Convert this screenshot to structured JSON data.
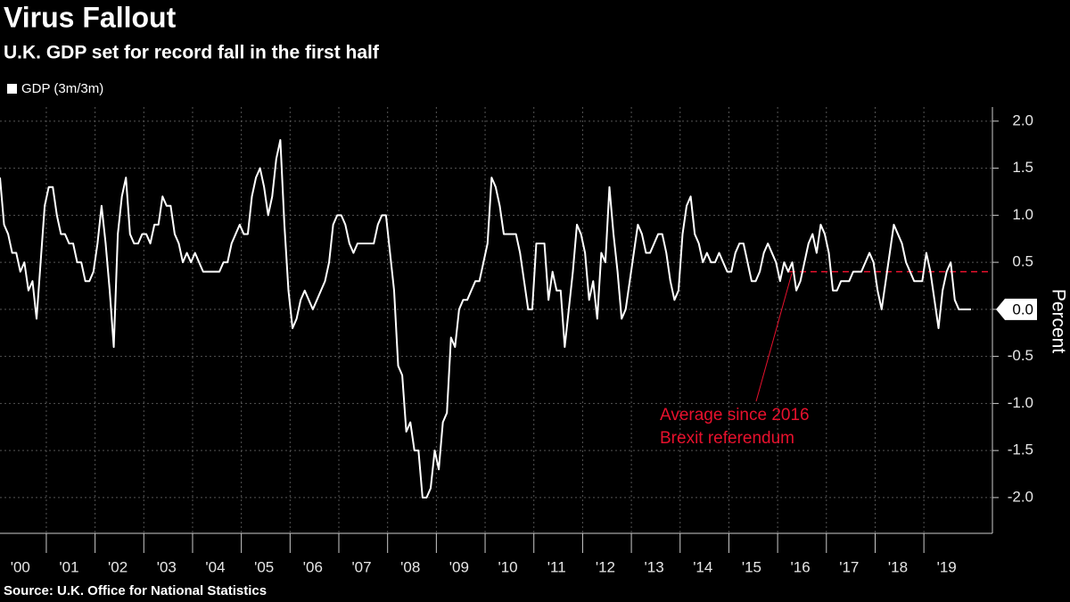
{
  "chart_data": {
    "type": "line",
    "title": "Virus Fallout",
    "subtitle": "U.K. GDP set for record fall in the first half",
    "source": "Source: U.K. Office for National Statistics",
    "y_label": "Percent",
    "categories": [
      null,
      null,
      null,
      null,
      null,
      "'00",
      null,
      null,
      null,
      null,
      null,
      null,
      null,
      null,
      null,
      null,
      null,
      "'01",
      null,
      null,
      null,
      null,
      null,
      null,
      null,
      null,
      null,
      null,
      null,
      "'02",
      null,
      null,
      null,
      null,
      null,
      null,
      null,
      null,
      null,
      null,
      null,
      "'03",
      null,
      null,
      null,
      null,
      null,
      null,
      null,
      null,
      null,
      null,
      null,
      "'04",
      null,
      null,
      null,
      null,
      null,
      null,
      null,
      null,
      null,
      null,
      null,
      "'05",
      null,
      null,
      null,
      null,
      null,
      null,
      null,
      null,
      null,
      null,
      null,
      "'06",
      null,
      null,
      null,
      null,
      null,
      null,
      null,
      null,
      null,
      null,
      null,
      "'07",
      null,
      null,
      null,
      null,
      null,
      null,
      null,
      null,
      null,
      null,
      null,
      "'08",
      null,
      null,
      null,
      null,
      null,
      null,
      null,
      null,
      null,
      null,
      null,
      "'09",
      null,
      null,
      null,
      null,
      null,
      null,
      null,
      null,
      null,
      null,
      null,
      "'10",
      null,
      null,
      null,
      null,
      null,
      null,
      null,
      null,
      null,
      null,
      null,
      "'11",
      null,
      null,
      null,
      null,
      null,
      null,
      null,
      null,
      null,
      null,
      null,
      "'12",
      null,
      null,
      null,
      null,
      null,
      null,
      null,
      null,
      null,
      null,
      null,
      "'13",
      null,
      null,
      null,
      null,
      null,
      null,
      null,
      null,
      null,
      null,
      null,
      "'14",
      null,
      null,
      null,
      null,
      null,
      null,
      null,
      null,
      null,
      null,
      null,
      "'15",
      null,
      null,
      null,
      null,
      null,
      null,
      null,
      null,
      null,
      null,
      null,
      "'16",
      null,
      null,
      null,
      null,
      null,
      null,
      null,
      null,
      null,
      null,
      null,
      "'17",
      null,
      null,
      null,
      null,
      null,
      null,
      null,
      null,
      null,
      null,
      null,
      "'18",
      null,
      null,
      null,
      null,
      null,
      null,
      null,
      null,
      null,
      null,
      null,
      "'19",
      null,
      null,
      null,
      null,
      null,
      null
    ],
    "series": [
      {
        "name": "GDP (3m/3m)",
        "color": "#ffffff",
        "values": [
          1.4,
          0.9,
          0.8,
          0.6,
          0.6,
          0.4,
          0.5,
          0.2,
          0.3,
          -0.1,
          0.5,
          1.1,
          1.3,
          1.3,
          1.0,
          0.8,
          0.8,
          0.7,
          0.7,
          0.5,
          0.5,
          0.3,
          0.3,
          0.4,
          0.7,
          1.1,
          0.7,
          0.2,
          -0.4,
          0.8,
          1.2,
          1.4,
          0.8,
          0.7,
          0.7,
          0.8,
          0.8,
          0.7,
          0.9,
          0.9,
          1.2,
          1.1,
          1.1,
          0.8,
          0.7,
          0.5,
          0.6,
          0.5,
          0.6,
          0.5,
          0.4,
          0.4,
          0.4,
          0.4,
          0.4,
          0.5,
          0.5,
          0.7,
          0.8,
          0.9,
          0.8,
          0.8,
          1.2,
          1.4,
          1.5,
          1.3,
          1.0,
          1.2,
          1.6,
          1.8,
          0.9,
          0.2,
          -0.2,
          -0.1,
          0.1,
          0.2,
          0.1,
          0.0,
          0.1,
          0.2,
          0.3,
          0.5,
          0.9,
          1.0,
          1.0,
          0.9,
          0.7,
          0.6,
          0.7,
          0.7,
          0.7,
          0.7,
          0.7,
          0.9,
          1.0,
          1.0,
          0.6,
          0.2,
          -0.6,
          -0.7,
          -1.3,
          -1.2,
          -1.5,
          -1.5,
          -2.0,
          -2.0,
          -1.9,
          -1.5,
          -1.7,
          -1.2,
          -1.1,
          -0.3,
          -0.4,
          0.0,
          0.1,
          0.1,
          0.2,
          0.3,
          0.3,
          0.5,
          0.7,
          1.4,
          1.3,
          1.1,
          0.8,
          0.8,
          0.8,
          0.8,
          0.6,
          0.3,
          0.0,
          0.0,
          0.7,
          0.7,
          0.7,
          0.1,
          0.4,
          0.2,
          0.2,
          -0.4,
          0.0,
          0.4,
          0.9,
          0.8,
          0.6,
          0.1,
          0.3,
          -0.1,
          0.6,
          0.5,
          1.3,
          0.8,
          0.4,
          -0.1,
          0.0,
          0.3,
          0.6,
          0.9,
          0.8,
          0.6,
          0.6,
          0.7,
          0.8,
          0.8,
          0.6,
          0.3,
          0.1,
          0.2,
          0.8,
          1.1,
          1.2,
          0.8,
          0.7,
          0.5,
          0.6,
          0.5,
          0.5,
          0.6,
          0.5,
          0.4,
          0.4,
          0.6,
          0.7,
          0.7,
          0.5,
          0.3,
          0.3,
          0.4,
          0.6,
          0.7,
          0.6,
          0.5,
          0.3,
          0.5,
          0.4,
          0.5,
          0.2,
          0.3,
          0.5,
          0.7,
          0.8,
          0.6,
          0.9,
          0.8,
          0.6,
          0.2,
          0.2,
          0.3,
          0.3,
          0.3,
          0.4,
          0.4,
          0.4,
          0.5,
          0.6,
          0.5,
          0.2,
          0.0,
          0.3,
          0.6,
          0.9,
          0.8,
          0.7,
          0.5,
          0.4,
          0.3,
          0.3,
          0.3,
          0.6,
          0.4,
          0.1,
          -0.2,
          0.2,
          0.4,
          0.5,
          0.1,
          0.0,
          0.0,
          0.0,
          0.0
        ]
      }
    ],
    "ylim": [
      -2.38,
      2.15
    ],
    "yticks": [
      {
        "value": -2,
        "label": "-2.0"
      },
      {
        "value": -1.5,
        "label": "-1.5"
      },
      {
        "value": -1,
        "label": "-1.0"
      },
      {
        "value": -0.5,
        "label": "-0.5"
      },
      {
        "value": 0,
        "label": "0.0"
      },
      {
        "value": 0.5,
        "label": "0.5"
      },
      {
        "value": 1,
        "label": "1.0"
      },
      {
        "value": 1.5,
        "label": "1.5"
      },
      {
        "value": 2,
        "label": "2.0"
      }
    ],
    "grid": true,
    "reference_line": {
      "value": 0.4,
      "color": "#e8112d",
      "annotation": [
        "Average since 2016",
        "Brexit referendum"
      ]
    }
  }
}
